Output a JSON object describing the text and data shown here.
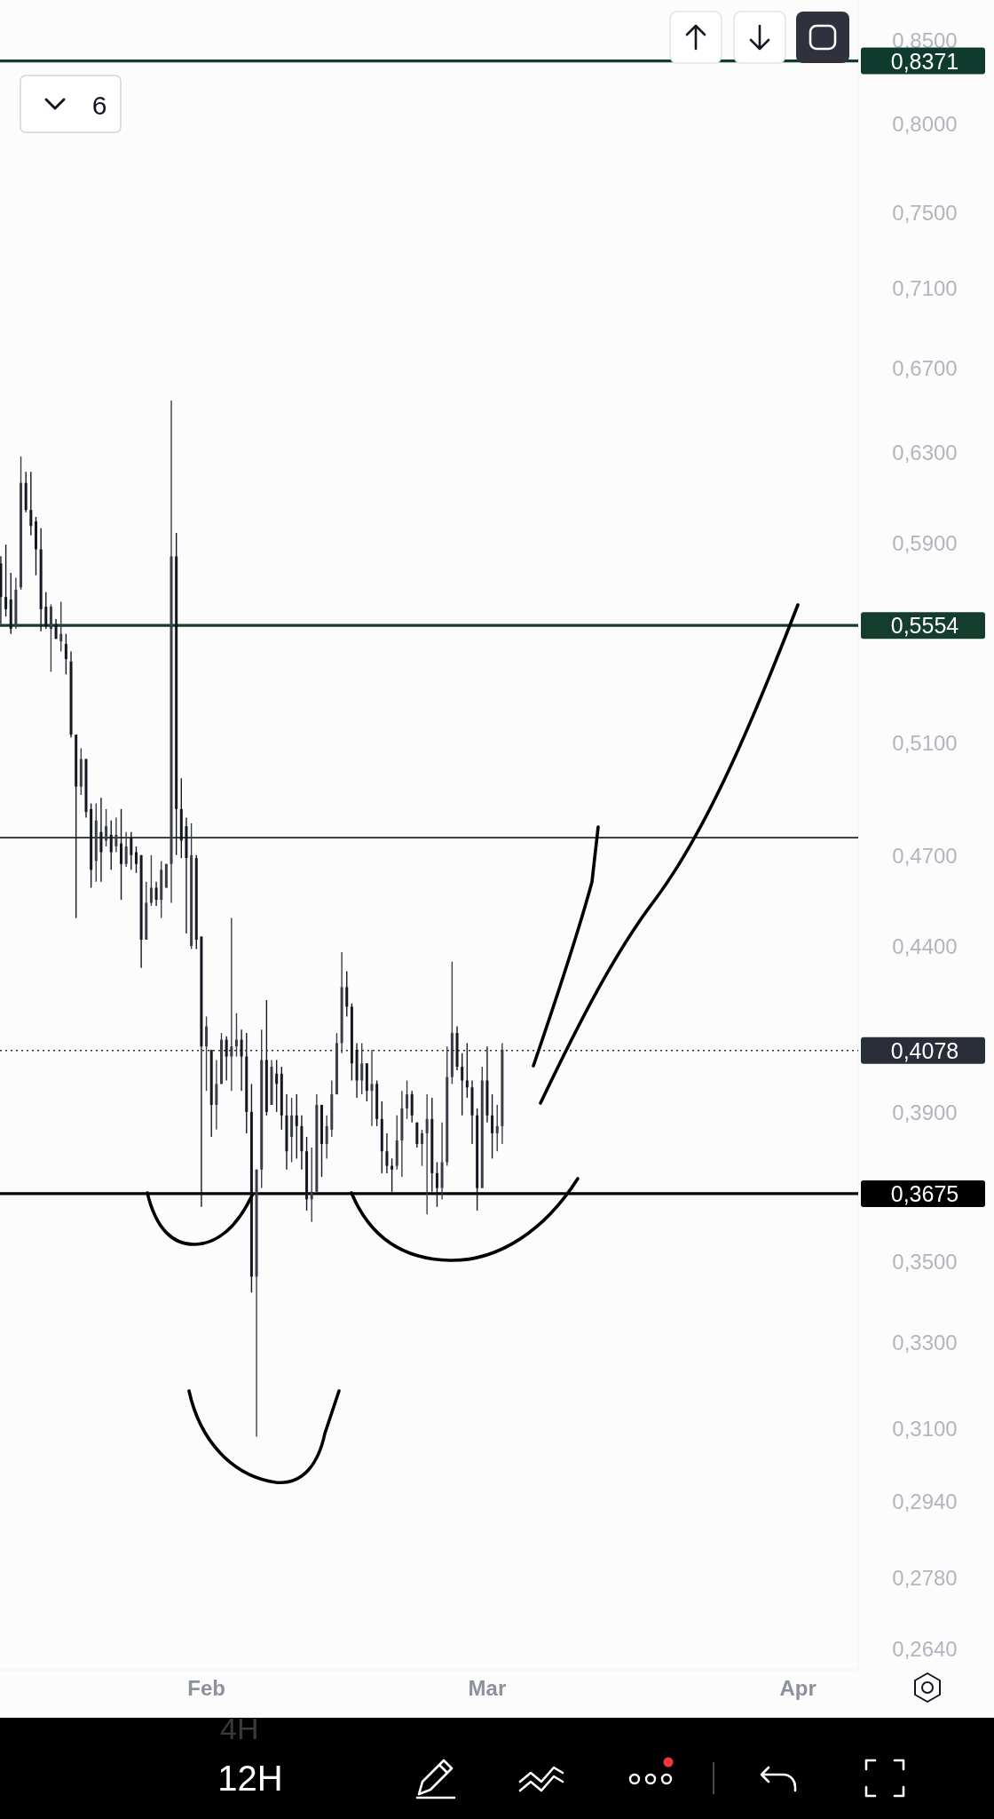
{
  "chart_data": {
    "type": "candlestick",
    "log": true,
    "x": [
      "--01-11T12:00",
      "--01-12T00:00",
      "--01-12T12:00",
      "--01-13T00:00",
      "--01-13T12:00",
      "--01-14T00:00",
      "--01-14T12:00",
      "--01-15T00:00",
      "--01-15T12:00",
      "--01-16T00:00",
      "--01-16T12:00",
      "--01-17T00:00",
      "--01-17T12:00",
      "--01-18T00:00",
      "--01-18T12:00",
      "--01-19T00:00",
      "--01-19T12:00",
      "--01-20T00:00",
      "--01-20T12:00",
      "--01-21T00:00",
      "--01-21T12:00",
      "--01-22T00:00",
      "--01-22T12:00",
      "--01-23T00:00",
      "--01-23T12:00",
      "--01-24T00:00",
      "--01-24T12:00",
      "--01-25T00:00",
      "--01-25T12:00",
      "--01-26T00:00",
      "--01-26T12:00",
      "--01-27T00:00",
      "--01-27T12:00",
      "--01-28T00:00",
      "--01-28T12:00",
      "--01-29T00:00",
      "--01-29T12:00",
      "--01-30T00:00",
      "--01-30T12:00",
      "--01-31T00:00",
      "--01-31T12:00",
      "--02-01T00:00",
      "--02-01T12:00",
      "--02-02T00:00",
      "--02-02T12:00",
      "--02-03T00:00",
      "--02-03T12:00",
      "--02-04T00:00",
      "--02-04T12:00",
      "--02-05T00:00",
      "--02-05T12:00",
      "--02-06T00:00",
      "--02-06T12:00",
      "--02-07T00:00",
      "--02-07T12:00",
      "--02-08T00:00",
      "--02-08T12:00",
      "--02-09T00:00",
      "--02-09T12:00",
      "--02-10T00:00",
      "--02-10T12:00",
      "--02-11T00:00",
      "--02-11T12:00",
      "--02-12T00:00",
      "--02-12T12:00",
      "--02-13T00:00",
      "--02-13T12:00",
      "--02-14T00:00",
      "--02-14T12:00",
      "--02-15T00:00",
      "--02-15T12:00",
      "--02-16T00:00",
      "--02-16T12:00",
      "--02-17T00:00",
      "--02-17T12:00",
      "--02-18T00:00",
      "--02-18T12:00",
      "--02-19T00:00",
      "--02-19T12:00",
      "--02-20T00:00",
      "--02-20T12:00",
      "--02-21T00:00",
      "--02-21T12:00",
      "--02-22T00:00",
      "--02-22T12:00",
      "--02-23T00:00",
      "--02-23T12:00",
      "--02-24T00:00",
      "--02-24T12:00",
      "--02-25T00:00",
      "--02-25T12:00",
      "--02-26T00:00",
      "--02-26T12:00",
      "--02-27T00:00",
      "--02-27T12:00",
      "--02-28T00:00",
      "--02-28T12:00",
      "--03-01T00:00",
      "--03-01T12:00",
      "--03-02T00:00",
      "--03-02T12:00"
    ],
    "ohlc": [
      [
        0.581,
        0.584,
        0.556,
        0.567
      ],
      [
        0.567,
        0.589,
        0.559,
        0.562
      ],
      [
        0.566,
        0.577,
        0.552,
        0.554
      ],
      [
        0.555,
        0.575,
        0.554,
        0.57
      ],
      [
        0.571,
        0.628,
        0.57,
        0.616
      ],
      [
        0.616,
        0.621,
        0.603,
        0.604
      ],
      [
        0.604,
        0.621,
        0.593,
        0.597
      ],
      [
        0.599,
        0.601,
        0.576,
        0.587
      ],
      [
        0.587,
        0.596,
        0.553,
        0.562
      ],
      [
        0.563,
        0.569,
        0.554,
        0.555
      ],
      [
        0.554,
        0.564,
        0.537,
        0.563
      ],
      [
        0.556,
        0.558,
        0.55,
        0.55
      ],
      [
        0.549,
        0.565,
        0.545,
        0.552
      ],
      [
        0.548,
        0.552,
        0.536,
        0.542
      ],
      [
        0.541,
        0.545,
        0.512,
        0.513
      ],
      [
        0.513,
        0.513,
        0.449,
        0.494
      ],
      [
        0.494,
        0.508,
        0.491,
        0.504
      ],
      [
        0.504,
        0.504,
        0.483,
        0.485
      ],
      [
        0.486,
        0.488,
        0.459,
        0.465
      ],
      [
        0.468,
        0.488,
        0.461,
        0.482
      ],
      [
        0.478,
        0.49,
        0.461,
        0.471
      ],
      [
        0.475,
        0.486,
        0.473,
        0.48
      ],
      [
        0.477,
        0.482,
        0.465,
        0.471
      ],
      [
        0.473,
        0.483,
        0.471,
        0.477
      ],
      [
        0.474,
        0.486,
        0.455,
        0.467
      ],
      [
        0.467,
        0.478,
        0.466,
        0.473
      ],
      [
        0.476,
        0.478,
        0.465,
        0.47
      ],
      [
        0.471,
        0.473,
        0.464,
        0.467
      ],
      [
        0.47,
        0.47,
        0.433,
        0.442
      ],
      [
        0.442,
        0.461,
        0.442,
        0.454
      ],
      [
        0.454,
        0.47,
        0.453,
        0.459
      ],
      [
        0.459,
        0.461,
        0.453,
        0.455
      ],
      [
        0.455,
        0.468,
        0.449,
        0.465
      ],
      [
        0.459,
        0.467,
        0.459,
        0.467
      ],
      [
        0.467,
        0.654,
        0.454,
        0.584
      ],
      [
        0.584,
        0.594,
        0.47,
        0.486
      ],
      [
        0.486,
        0.497,
        0.469,
        0.475
      ],
      [
        0.48,
        0.483,
        0.444,
        0.469
      ],
      [
        0.44,
        0.481,
        0.439,
        0.47
      ],
      [
        0.469,
        0.47,
        0.439,
        0.442
      ],
      [
        0.443,
        0.443,
        0.364,
        0.409
      ],
      [
        0.409,
        0.418,
        0.396,
        0.415
      ],
      [
        0.408,
        0.408,
        0.383,
        0.392
      ],
      [
        0.392,
        0.405,
        0.385,
        0.398
      ],
      [
        0.398,
        0.413,
        0.398,
        0.411
      ],
      [
        0.411,
        0.412,
        0.399,
        0.406
      ],
      [
        0.406,
        0.449,
        0.396,
        0.409
      ],
      [
        0.409,
        0.419,
        0.406,
        0.411
      ],
      [
        0.411,
        0.414,
        0.396,
        0.406
      ],
      [
        0.406,
        0.413,
        0.384,
        0.39
      ],
      [
        0.39,
        0.398,
        0.342,
        0.346
      ],
      [
        0.346,
        0.374,
        0.308,
        0.374
      ],
      [
        0.374,
        0.414,
        0.369,
        0.405
      ],
      [
        0.405,
        0.423,
        0.389,
        0.39
      ],
      [
        0.392,
        0.405,
        0.392,
        0.403
      ],
      [
        0.401,
        0.405,
        0.39,
        0.398
      ],
      [
        0.401,
        0.403,
        0.385,
        0.389
      ],
      [
        0.389,
        0.395,
        0.374,
        0.379
      ],
      [
        0.383,
        0.394,
        0.376,
        0.389
      ],
      [
        0.389,
        0.395,
        0.377,
        0.386
      ],
      [
        0.386,
        0.389,
        0.374,
        0.379
      ],
      [
        0.379,
        0.383,
        0.363,
        0.366
      ],
      [
        0.366,
        0.38,
        0.36,
        0.368
      ],
      [
        0.368,
        0.395,
        0.368,
        0.392
      ],
      [
        0.392,
        0.392,
        0.372,
        0.381
      ],
      [
        0.381,
        0.389,
        0.377,
        0.386
      ],
      [
        0.385,
        0.399,
        0.383,
        0.395
      ],
      [
        0.395,
        0.413,
        0.395,
        0.41
      ],
      [
        0.41,
        0.438,
        0.407,
        0.427
      ],
      [
        0.427,
        0.432,
        0.418,
        0.421
      ],
      [
        0.421,
        0.422,
        0.399,
        0.404
      ],
      [
        0.408,
        0.41,
        0.394,
        0.399
      ],
      [
        0.399,
        0.41,
        0.395,
        0.404
      ],
      [
        0.404,
        0.404,
        0.393,
        0.396
      ],
      [
        0.396,
        0.408,
        0.386,
        0.398
      ],
      [
        0.398,
        0.399,
        0.386,
        0.388
      ],
      [
        0.388,
        0.393,
        0.373,
        0.379
      ],
      [
        0.379,
        0.384,
        0.373,
        0.375
      ],
      [
        0.375,
        0.377,
        0.368,
        0.374
      ],
      [
        0.375,
        0.389,
        0.374,
        0.382
      ],
      [
        0.382,
        0.396,
        0.372,
        0.391
      ],
      [
        0.391,
        0.399,
        0.388,
        0.395
      ],
      [
        0.395,
        0.396,
        0.387,
        0.389
      ],
      [
        0.387,
        0.387,
        0.38,
        0.381
      ],
      [
        0.381,
        0.385,
        0.375,
        0.384
      ],
      [
        0.384,
        0.395,
        0.362,
        0.388
      ],
      [
        0.388,
        0.394,
        0.368,
        0.373
      ],
      [
        0.373,
        0.376,
        0.364,
        0.369
      ],
      [
        0.369,
        0.387,
        0.366,
        0.376
      ],
      [
        0.376,
        0.409,
        0.375,
        0.4
      ],
      [
        0.4,
        0.435,
        0.398,
        0.413
      ],
      [
        0.413,
        0.415,
        0.402,
        0.403
      ],
      [
        0.403,
        0.407,
        0.389,
        0.399
      ],
      [
        0.399,
        0.41,
        0.394,
        0.397
      ],
      [
        0.397,
        0.399,
        0.381,
        0.389
      ],
      [
        0.389,
        0.391,
        0.363,
        0.369
      ],
      [
        0.369,
        0.403,
        0.369,
        0.399
      ],
      [
        0.399,
        0.409,
        0.387,
        0.389
      ],
      [
        0.389,
        0.395,
        0.377,
        0.384
      ],
      [
        0.384,
        0.392,
        0.379,
        0.386
      ],
      [
        0.386,
        0.41,
        0.381,
        0.408
      ]
    ],
    "colors": [
      "#151821",
      "#151821",
      "#151821",
      "#3b3e48",
      "#3b3e48",
      "#151821",
      "#151821",
      "#151821",
      "#151821",
      "#151821",
      "#3b3e48",
      "#151821",
      "#3b3e48",
      "#151821",
      "#151821",
      "#151821",
      "#3b3e48",
      "#151821",
      "#151821",
      "#3b3e48",
      "#151821",
      "#3b3e48",
      "#151821",
      "#3b3e48",
      "#151821",
      "#3b3e48",
      "#151821",
      "#151821",
      "#151821",
      "#3b3e48",
      "#3b3e48",
      "#151821",
      "#3b3e48",
      "#3b3e48",
      "#3b3e48",
      "#151821",
      "#151821",
      "#151821",
      "#3b3e48",
      "#151821",
      "#151821",
      "#3b3e48",
      "#151821",
      "#3b3e48",
      "#3b3e48",
      "#151821",
      "#3b3e48",
      "#3b3e48",
      "#151821",
      "#151821",
      "#151821",
      "#3b3e48",
      "#3b3e48",
      "#151821",
      "#3b3e48",
      "#151821",
      "#151821",
      "#151821",
      "#3b3e48",
      "#151821",
      "#151821",
      "#151821",
      "#3b3e48",
      "#3b3e48",
      "#151821",
      "#3b3e48",
      "#3b3e48",
      "#3b3e48",
      "#3b3e48",
      "#151821",
      "#151821",
      "#151821",
      "#3b3e48",
      "#151821",
      "#3b3e48",
      "#151821",
      "#151821",
      "#151821",
      "#151821",
      "#3b3e48",
      "#3b3e48",
      "#3b3e48",
      "#151821",
      "#151821",
      "#3b3e48",
      "#3b3e48",
      "#151821",
      "#151821",
      "#3b3e48",
      "#3b3e48",
      "#3b3e48",
      "#151821",
      "#151821",
      "#151821",
      "#151821",
      "#151821",
      "#3b3e48",
      "#151821",
      "#151821",
      "#3b3e48",
      "#3b3e48"
    ],
    "xlim": [
      "--01-11T10:00",
      "--04-07T00:00"
    ],
    "xticks": [
      {
        "value": "--02-01",
        "label": "Feb"
      },
      {
        "value": "--03-01",
        "label": "Mar"
      },
      {
        "value": "--04-01",
        "label": "Apr"
      }
    ],
    "ylim": [
      0.26,
      0.875
    ],
    "yticks": [
      {
        "value": 0.85,
        "label": "0,8500"
      },
      {
        "value": 0.8,
        "label": "0,8000"
      },
      {
        "value": 0.75,
        "label": "0,7500"
      },
      {
        "value": 0.71,
        "label": "0,7100"
      },
      {
        "value": 0.67,
        "label": "0,6700"
      },
      {
        "value": 0.63,
        "label": "0,6300"
      },
      {
        "value": 0.59,
        "label": "0,5900"
      },
      {
        "value": 0.51,
        "label": "0,5100"
      },
      {
        "value": 0.47,
        "label": "0,4700"
      },
      {
        "value": 0.44,
        "label": "0,4400"
      },
      {
        "value": 0.39,
        "label": "0,3900"
      },
      {
        "value": 0.35,
        "label": "0,3500"
      },
      {
        "value": 0.33,
        "label": "0,3300"
      },
      {
        "value": 0.31,
        "label": "0,3100"
      },
      {
        "value": 0.294,
        "label": "0,2940"
      },
      {
        "value": 0.278,
        "label": "0,2780"
      },
      {
        "value": 0.264,
        "label": "0,2640"
      }
    ],
    "ref_lines": [
      {
        "axis": "y",
        "value": 0.8371,
        "label": "0,8371",
        "color": "#0e3b2d"
      },
      {
        "axis": "y",
        "value": 0.5554,
        "label": "0,5554",
        "color": "#143d2e"
      },
      {
        "axis": "y",
        "value": 0.476,
        "label": null,
        "color": "#1f2a28"
      },
      {
        "axis": "y",
        "value": 0.4078,
        "label": "0,4078",
        "color": "#2a2e39",
        "line_style": "dotted"
      },
      {
        "axis": "y",
        "value": 0.3675,
        "label": "0,3675",
        "color": "#000000"
      }
    ],
    "annotations": [
      "6",
      "4H",
      "12H"
    ]
  }
}
